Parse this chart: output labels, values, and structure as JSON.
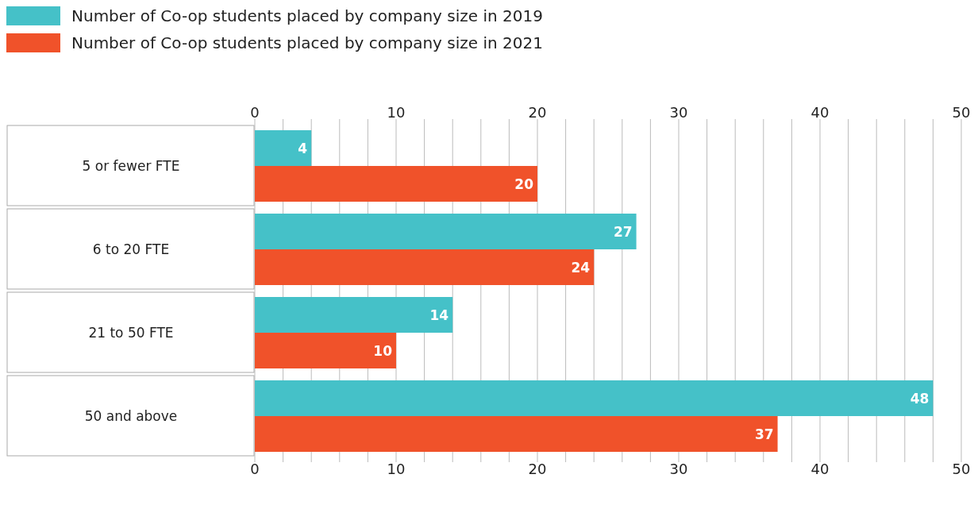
{
  "chart_data": {
    "type": "bar",
    "orientation": "horizontal",
    "categories": [
      "5 or fewer FTE",
      "6 to 20 FTE",
      "21 to 50 FTE",
      "50 and above"
    ],
    "series": [
      {
        "name": "Number of Co-op students placed by company size in 2019",
        "color": "#45c1c8",
        "values": [
          4,
          27,
          14,
          48
        ]
      },
      {
        "name": "Number of Co-op students placed by company size in 2021",
        "color": "#f0522a",
        "values": [
          20,
          24,
          10,
          37
        ]
      }
    ],
    "xlim": [
      0,
      50
    ],
    "xticks": [
      0,
      {
        "value": 2,
        "label": null
      },
      {
        "value": 4,
        "label": null
      },
      {
        "value": 6,
        "label": null
      },
      {
        "value": 8,
        "label": null
      },
      10,
      {
        "value": 12,
        "label": null
      },
      {
        "value": 14,
        "label": null
      },
      {
        "value": 16,
        "label": null
      },
      {
        "value": 18,
        "label": null
      },
      20,
      {
        "value": 22,
        "label": null
      },
      {
        "value": 24,
        "label": null
      },
      {
        "value": 26,
        "label": null
      },
      {
        "value": 28,
        "label": null
      },
      30,
      {
        "value": 32,
        "label": null
      },
      {
        "value": 34,
        "label": null
      },
      {
        "value": 36,
        "label": null
      },
      {
        "value": 38,
        "label": null
      },
      40,
      {
        "value": 42,
        "label": null
      },
      {
        "value": 44,
        "label": null
      },
      {
        "value": 46,
        "label": null
      },
      {
        "value": 48,
        "label": null
      },
      50
    ],
    "x2lim": [
      0,
      50
    ],
    "x2ticks": [
      0,
      {
        "value": 2,
        "label": null
      },
      {
        "value": 4,
        "label": null
      },
      {
        "value": 6,
        "label": null
      },
      {
        "value": 8,
        "label": null
      },
      10,
      {
        "value": 12,
        "label": null
      },
      {
        "value": 14,
        "label": null
      },
      {
        "value": 16,
        "label": null
      },
      {
        "value": 18,
        "label": null
      },
      20,
      {
        "value": 22,
        "label": null
      },
      {
        "value": 24,
        "label": null
      },
      {
        "value": 26,
        "label": null
      },
      {
        "value": 28,
        "label": null
      },
      30,
      {
        "value": 32,
        "label": null
      },
      {
        "value": 34,
        "label": null
      },
      {
        "value": 36,
        "label": null
      },
      {
        "value": 38,
        "label": null
      },
      40,
      {
        "value": 42,
        "label": null
      },
      {
        "value": 44,
        "label": null
      },
      {
        "value": 46,
        "label": null
      },
      {
        "value": 48,
        "label": null
      },
      50
    ],
    "grid": "x",
    "legend": "top left",
    "data_labels": true
  }
}
